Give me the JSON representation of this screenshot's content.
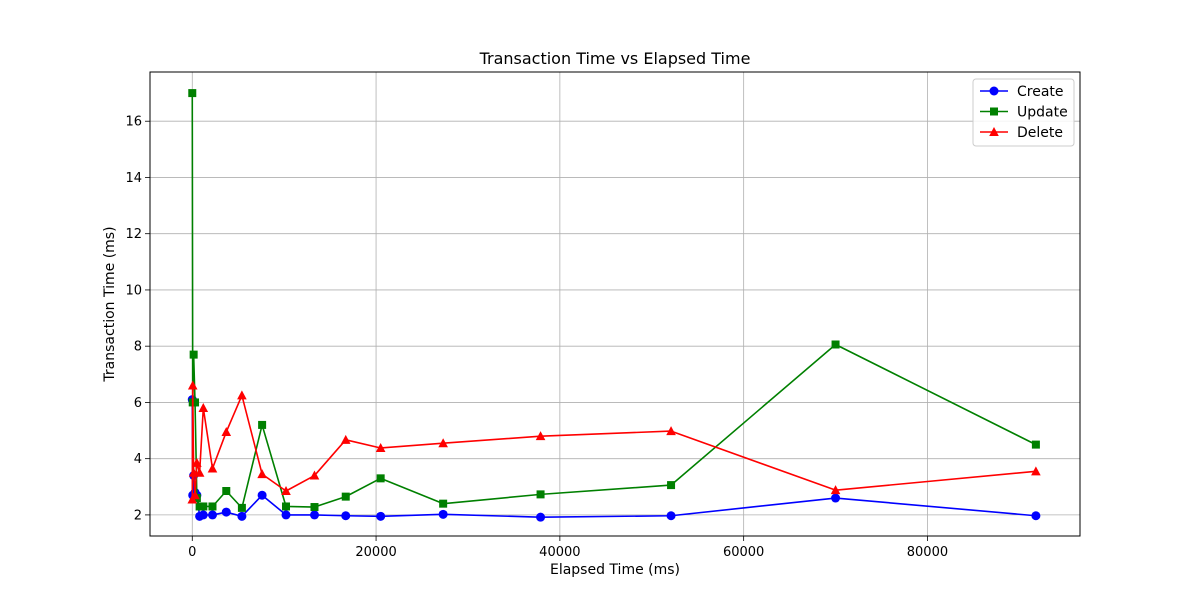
{
  "chart_data": {
    "type": "line",
    "title": "Transaction Time vs Elapsed Time",
    "xlabel": "Elapsed Time (ms)",
    "ylabel": "Transaction Time (ms)",
    "xlim": [
      -4600,
      96600
    ],
    "ylim": [
      1.25,
      17.75
    ],
    "xticks": [
      0,
      20000,
      40000,
      60000,
      80000
    ],
    "yticks": [
      2,
      4,
      6,
      8,
      10,
      12,
      14,
      16
    ],
    "grid": true,
    "legend_position": "top-right",
    "series": [
      {
        "name": "Create",
        "color": "#0000ff",
        "marker": "circle",
        "x": [
          0,
          50,
          150,
          300,
          500,
          800,
          1200,
          2200,
          3700,
          5400,
          7600,
          10200,
          13300,
          16700,
          20500,
          27300,
          37900,
          52100,
          70000,
          91800
        ],
        "y": [
          6.1,
          2.7,
          3.4,
          2.8,
          2.7,
          1.95,
          2.0,
          2.0,
          2.1,
          1.95,
          2.7,
          2.0,
          2.0,
          1.97,
          1.95,
          2.02,
          1.92,
          1.97,
          2.6,
          1.97
        ]
      },
      {
        "name": "Update",
        "color": "#008000",
        "marker": "square",
        "x": [
          0,
          50,
          150,
          300,
          500,
          800,
          1200,
          2200,
          3700,
          5400,
          7600,
          10200,
          13300,
          16700,
          20500,
          27300,
          37900,
          52100,
          70000,
          91800
        ],
        "y": [
          17.0,
          6.0,
          7.7,
          6.0,
          2.6,
          2.3,
          2.3,
          2.3,
          2.85,
          2.25,
          5.2,
          2.3,
          2.28,
          2.65,
          3.3,
          2.4,
          2.73,
          3.06,
          8.06,
          4.5
        ]
      },
      {
        "name": "Delete",
        "color": "#ff0000",
        "marker": "triangle",
        "x": [
          0,
          50,
          150,
          300,
          500,
          800,
          1200,
          2200,
          3700,
          5400,
          7600,
          10200,
          13300,
          16700,
          20500,
          27300,
          37900,
          52100,
          70000,
          91800
        ],
        "y": [
          2.55,
          6.6,
          3.5,
          2.7,
          3.85,
          3.5,
          5.8,
          3.65,
          4.95,
          6.25,
          3.45,
          2.85,
          3.4,
          4.67,
          4.38,
          4.55,
          4.8,
          4.98,
          2.88,
          3.55
        ]
      }
    ]
  }
}
